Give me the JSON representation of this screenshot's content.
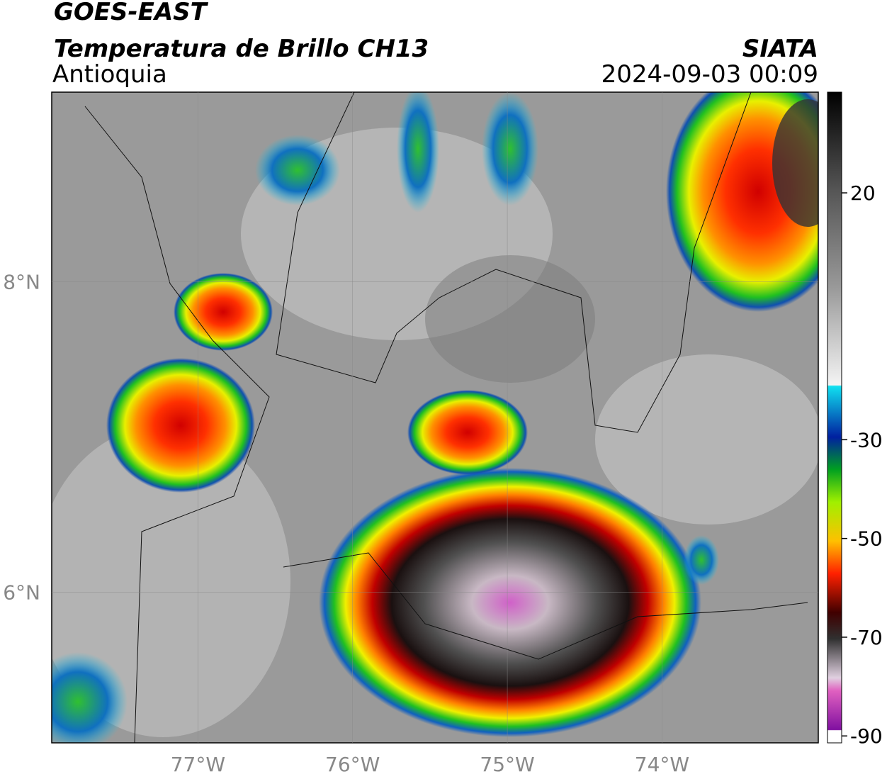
{
  "header": {
    "title": "GOES-EAST",
    "subtitle": "Temperatura de Brillo CH13",
    "region": "Antioquia",
    "source": "SIATA",
    "datetime": "2024-09-03 00:09"
  },
  "map": {
    "lonlim": [
      -77.945,
      -72.99
    ],
    "latlim": [
      5.03,
      9.22
    ],
    "lon_ticks": [
      {
        "value": -77,
        "label": "77°W"
      },
      {
        "value": -76,
        "label": "76°W"
      },
      {
        "value": -75,
        "label": "75°W"
      },
      {
        "value": -74,
        "label": "74°W"
      }
    ],
    "lat_ticks": [
      {
        "value": 8,
        "label": "8°N"
      },
      {
        "value": 6,
        "label": "6°N"
      }
    ],
    "grid": true
  },
  "colorbar": {
    "lim": [
      -91.4,
      40.4
    ],
    "ticks": [
      20,
      -30,
      -50,
      -70,
      -90
    ]
  }
}
